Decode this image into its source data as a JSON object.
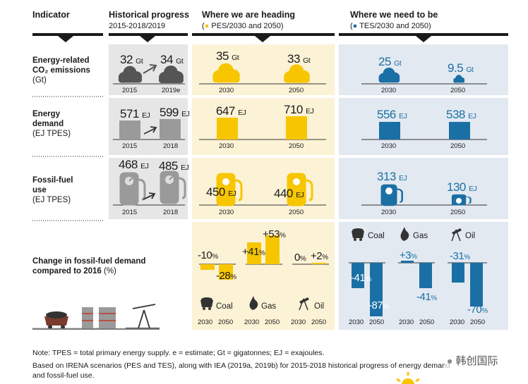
{
  "header": {
    "indicator": "Indicator",
    "historical": "Historical progress",
    "historical_years": "2015-2018/2019",
    "heading": "Where we are heading",
    "heading_sub": "PES/2030 and 2050)",
    "need": "Where we need to be",
    "need_sub": "TES/2030 and 2050)"
  },
  "colors": {
    "gray": "#9a9a9a",
    "yellow": "#f7c600",
    "blue": "#1a6fa4",
    "yellow_bg": "#fcf3d6",
    "blue_bg": "#e2e9f1",
    "gray_bg": "#e6e6e6"
  },
  "rows": {
    "co2": {
      "label1": "Energy-related",
      "label2": "CO₂ emissions",
      "label3": "(Gt)",
      "hist": [
        {
          "v": "32",
          "u": "Gt",
          "y": "2015"
        },
        {
          "v": "34",
          "u": "Gt",
          "y": "2019e"
        }
      ],
      "pes": [
        {
          "v": "35",
          "u": "Gt",
          "y": "2030"
        },
        {
          "v": "33",
          "u": "Gt",
          "y": "2050"
        }
      ],
      "tes": [
        {
          "v": "25",
          "u": "Gt",
          "y": "2030"
        },
        {
          "v": "9.5",
          "u": "Gt",
          "y": "2050"
        }
      ]
    },
    "energy": {
      "label1": "Energy",
      "label2": "demand",
      "label3": "(EJ TPES)",
      "hist": [
        {
          "v": "571",
          "u": "EJ",
          "y": "2015"
        },
        {
          "v": "599",
          "u": "EJ",
          "y": "2018"
        }
      ],
      "pes": [
        {
          "v": "647",
          "u": "EJ",
          "y": "2030"
        },
        {
          "v": "710",
          "u": "EJ",
          "y": "2050"
        }
      ],
      "tes": [
        {
          "v": "556",
          "u": "EJ",
          "y": "2030"
        },
        {
          "v": "538",
          "u": "EJ",
          "y": "2050"
        }
      ]
    },
    "fossil": {
      "label1": "Fossil-fuel",
      "label2": "use",
      "label3": "(EJ TPES)",
      "hist": [
        {
          "v": "468",
          "u": "EJ",
          "y": "2015"
        },
        {
          "v": "485",
          "u": "EJ",
          "y": "2018"
        }
      ],
      "pes": [
        {
          "v": "450",
          "u": "EJ",
          "y": "2030"
        },
        {
          "v": "440",
          "u": "EJ",
          "y": "2050"
        }
      ],
      "tes": [
        {
          "v": "313",
          "u": "EJ",
          "y": "2030"
        },
        {
          "v": "130",
          "u": "EJ",
          "y": "2050"
        }
      ]
    },
    "change": {
      "label1": "Change in fossil-fuel demand",
      "label2": "compared to 2016",
      "label2b": "(%)",
      "pes": {
        "coal": {
          "v2030": "-10",
          "v2050": "-28"
        },
        "gas": {
          "v2030": "+41",
          "v2050": "+53"
        },
        "oil": {
          "v2030": "0",
          "v2050": "+2"
        }
      },
      "tes": {
        "coal": {
          "v2030": "-41",
          "v2050": "-87"
        },
        "gas": {
          "v2030": "+3",
          "v2050": "-41"
        },
        "oil": {
          "v2030": "-31",
          "v2050": "-70"
        }
      },
      "pct": "%",
      "fuels": {
        "coal": "Coal",
        "gas": "Gas",
        "oil": "Oil"
      },
      "years": [
        "2030",
        "2050"
      ]
    }
  },
  "notes": {
    "n1": "Note: TPES = total primary energy supply. e = estimate; Gt = gigatonnes; EJ = exajoules.",
    "n2": "Based on IRENA scenarios (PES and TES), along with IEA (2019a, 2019b) for 2015-2018 historical progress of energy demand",
    "n3": "and fossil-fuel use."
  },
  "watermark": "韩创国际"
}
